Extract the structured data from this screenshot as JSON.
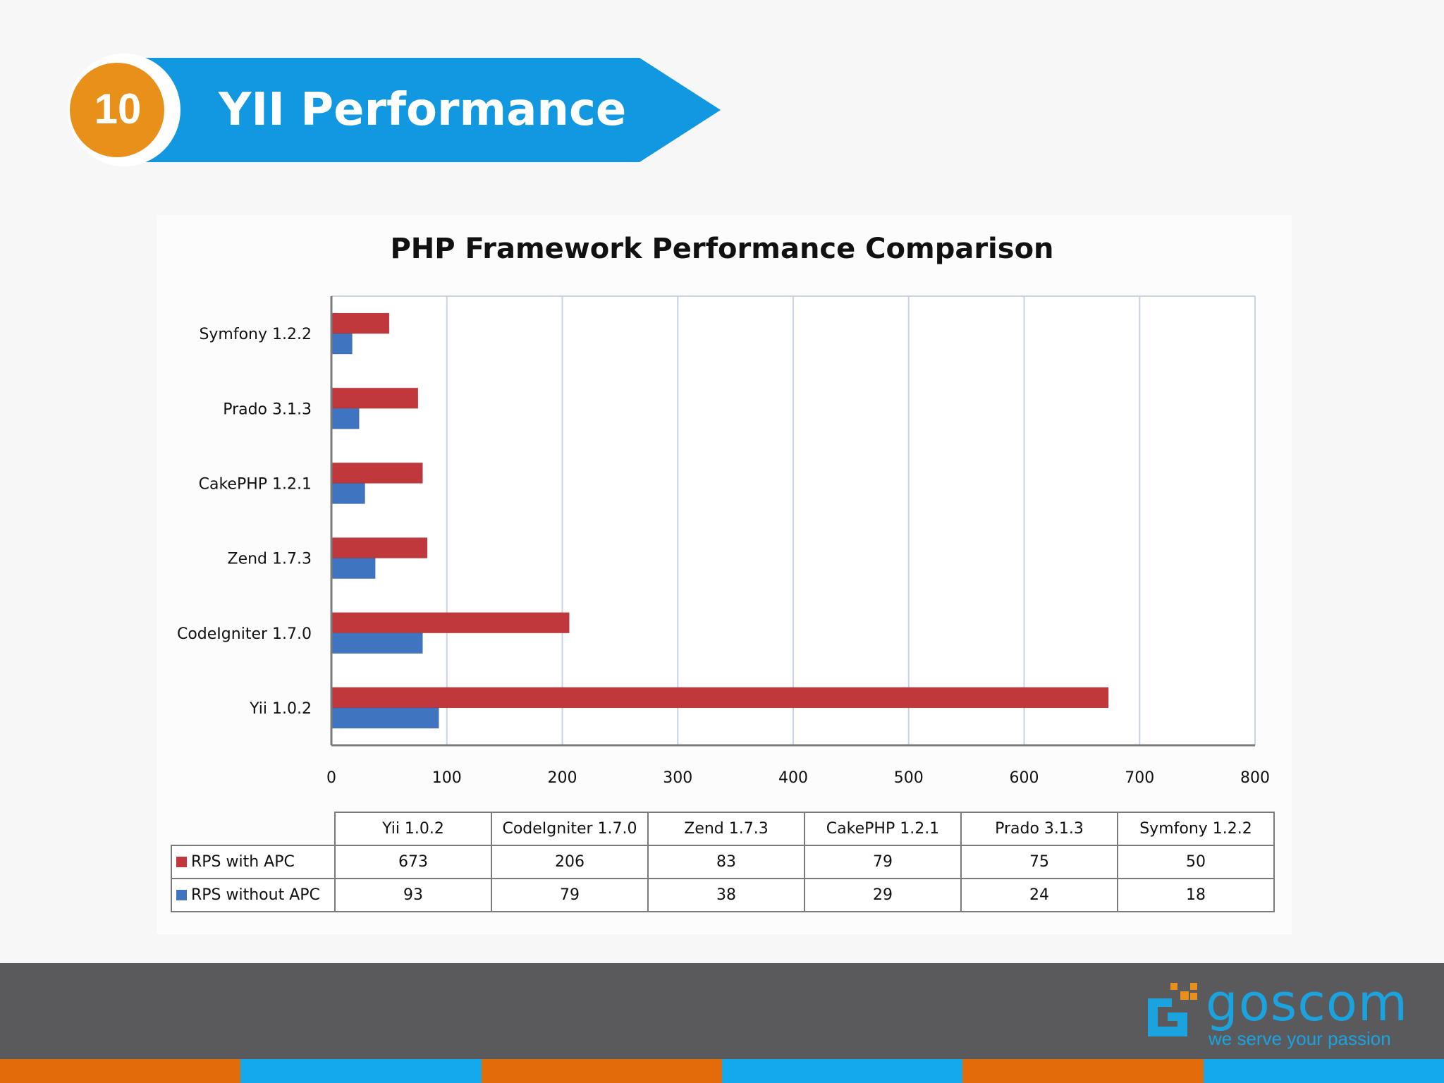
{
  "slide": {
    "number": "10",
    "title": "YII Performance"
  },
  "colors": {
    "banner_blue": "#1298e0",
    "badge_orange": "#e8901a",
    "series_with_apc": "#c0383c",
    "series_without_apc": "#3f74c0",
    "footer_gray": "#5a5a5c",
    "stripe_orange": "#e36c0a",
    "stripe_blue": "#14a9ec"
  },
  "chart_data": {
    "type": "bar",
    "orientation": "horizontal",
    "title": "PHP Framework Performance Comparison",
    "categories": [
      "Yii 1.0.2",
      "CodeIgniter 1.7.0",
      "Zend 1.7.3",
      "CakePHP 1.2.1",
      "Prado 3.1.3",
      "Symfony 1.2.2"
    ],
    "series": [
      {
        "name": "RPS with APC",
        "values": [
          673,
          206,
          83,
          79,
          75,
          50
        ],
        "color": "#c0383c"
      },
      {
        "name": "RPS without  APC",
        "values": [
          93,
          79,
          38,
          29,
          24,
          18
        ],
        "color": "#3f74c0"
      }
    ],
    "xlim": [
      0,
      800
    ],
    "xticks": [
      0,
      100,
      200,
      300,
      400,
      500,
      600,
      700,
      800
    ],
    "grid": true,
    "legend": "data table below chart"
  },
  "logo": {
    "name": "goscom",
    "tagline": "we serve your passion"
  }
}
